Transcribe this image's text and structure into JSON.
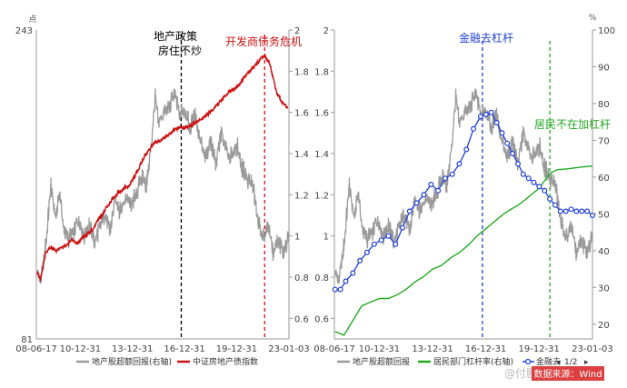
{
  "colors": {
    "grey_series": "#9a9a9a",
    "red_series": "#cc1111",
    "green_series": "#22aa22",
    "blue_series": "#1f3fd6",
    "black_marker": "#000000"
  },
  "chart_data": [
    {
      "type": "line",
      "title": "",
      "left_axis": {
        "unit": "点",
        "ticks": [
          "243",
          "81"
        ],
        "range": [
          81,
          243
        ]
      },
      "right_axis": {
        "ticks": [
          "2",
          "1.8",
          "1.6",
          "1.4",
          "1.2",
          "1",
          "0.8",
          "0.6"
        ],
        "range": [
          0.5,
          2.0
        ]
      },
      "x_ticks": [
        "08-06-17",
        "10-12-31",
        "13-12-31",
        "16-12-31",
        "19-12-31",
        "23-01-03"
      ],
      "series": [
        {
          "name": "地产股超额回报(右轴)",
          "axis": "right",
          "x": [
            2008.5,
            2008.7,
            2009.0,
            2009.3,
            2009.6,
            2009.8,
            2010.0,
            2010.3,
            2010.6,
            2010.9,
            2011.2,
            2011.5,
            2011.8,
            2012.1,
            2012.4,
            2012.7,
            2013.0,
            2013.3,
            2013.6,
            2013.9,
            2014.2,
            2014.5,
            2014.8,
            2015.1,
            2015.3,
            2015.5,
            2015.8,
            2016.1,
            2016.4,
            2016.7,
            2017.0,
            2017.3,
            2017.6,
            2017.9,
            2018.2,
            2018.5,
            2018.8,
            2019.1,
            2019.4,
            2019.7,
            2020.0,
            2020.3,
            2020.6,
            2020.9,
            2021.2,
            2021.5,
            2021.8,
            2022.1,
            2022.4,
            2022.7,
            2023.0
          ],
          "values": [
            0.82,
            0.78,
            0.95,
            1.25,
            1.08,
            1.22,
            1.05,
            0.98,
            1.02,
            1.08,
            1.0,
            1.05,
            0.97,
            1.04,
            1.1,
            1.02,
            1.18,
            1.12,
            1.2,
            1.15,
            1.2,
            1.28,
            1.25,
            1.45,
            1.68,
            1.55,
            1.6,
            1.62,
            1.7,
            1.58,
            1.62,
            1.52,
            1.6,
            1.45,
            1.38,
            1.46,
            1.35,
            1.5,
            1.42,
            1.38,
            1.44,
            1.33,
            1.28,
            1.25,
            1.08,
            0.98,
            1.05,
            0.92,
            0.98,
            0.9,
            1.02
          ]
        },
        {
          "name": "中证房地产债指数",
          "axis": "left",
          "x": [
            2008.5,
            2008.7,
            2009.0,
            2009.3,
            2009.6,
            2009.9,
            2010.2,
            2010.5,
            2010.8,
            2011.1,
            2011.4,
            2011.7,
            2012.0,
            2012.3,
            2012.6,
            2012.9,
            2013.2,
            2013.5,
            2013.8,
            2014.1,
            2014.4,
            2014.7,
            2015.0,
            2015.3,
            2015.6,
            2015.9,
            2016.2,
            2016.5,
            2016.8,
            2017.1,
            2017.4,
            2017.7,
            2018.0,
            2018.3,
            2018.6,
            2018.9,
            2019.2,
            2019.5,
            2019.8,
            2020.1,
            2020.4,
            2020.7,
            2021.0,
            2021.3,
            2021.5,
            2021.7,
            2021.9,
            2022.1,
            2022.3,
            2022.6,
            2022.9
          ],
          "values": [
            116,
            112,
            126,
            129,
            127,
            129,
            130,
            133,
            131,
            134,
            136,
            138,
            143,
            147,
            151,
            155,
            158,
            160,
            161,
            166,
            171,
            177,
            181,
            184,
            185,
            187,
            189,
            191,
            192,
            192,
            193,
            195,
            196,
            199,
            201,
            204,
            207,
            210,
            212,
            214,
            218,
            221,
            224,
            227,
            229,
            228,
            225,
            217,
            210,
            205,
            203
          ]
        }
      ],
      "vlines": [
        {
          "x": 2016.8,
          "style": "dashed",
          "color": "#000000"
        },
        {
          "x": 2021.6,
          "style": "dashed",
          "color": "#cc1111"
        }
      ],
      "annotations": [
        {
          "text": "地产政策",
          "color": "#000000"
        },
        {
          "text": "房住不炒",
          "color": "#000000"
        },
        {
          "text": "开发商债务危机",
          "color": "#cc1111"
        }
      ],
      "legend": [
        "地产股超额回报(右轴)",
        "中证房地产债指数"
      ]
    },
    {
      "type": "line",
      "title": "",
      "left_axis": {
        "ticks": [
          "2",
          "1.8",
          "1.6",
          "1.4",
          "1.2",
          "1",
          "0.8",
          "0.6"
        ],
        "range": [
          0.5,
          2.0
        ]
      },
      "right_axis": {
        "unit": "%",
        "ticks": [
          "100",
          "90",
          "80",
          "70",
          "60",
          "50",
          "40",
          "30",
          "20"
        ],
        "range": [
          16,
          100
        ]
      },
      "x_ticks": [
        "08-06-17",
        "10-12-31",
        "13-12-31",
        "16-12-31",
        "19-12-31",
        "23-01-03"
      ],
      "series": [
        {
          "name": "地产股超额回报",
          "axis": "left",
          "x": [
            2008.5,
            2008.7,
            2009.0,
            2009.3,
            2009.6,
            2009.8,
            2010.0,
            2010.3,
            2010.6,
            2010.9,
            2011.2,
            2011.5,
            2011.8,
            2012.1,
            2012.4,
            2012.7,
            2013.0,
            2013.3,
            2013.6,
            2013.9,
            2014.2,
            2014.5,
            2014.8,
            2015.1,
            2015.3,
            2015.5,
            2015.8,
            2016.1,
            2016.4,
            2016.7,
            2017.0,
            2017.3,
            2017.6,
            2017.9,
            2018.2,
            2018.5,
            2018.8,
            2019.1,
            2019.4,
            2019.7,
            2020.0,
            2020.3,
            2020.6,
            2020.9,
            2021.2,
            2021.5,
            2021.8,
            2022.1,
            2022.4,
            2022.7,
            2023.0
          ],
          "values": [
            0.82,
            0.78,
            0.95,
            1.25,
            1.08,
            1.22,
            1.05,
            0.98,
            1.02,
            1.08,
            1.0,
            1.05,
            0.97,
            1.04,
            1.1,
            1.02,
            1.18,
            1.12,
            1.2,
            1.15,
            1.2,
            1.28,
            1.25,
            1.45,
            1.68,
            1.55,
            1.6,
            1.62,
            1.7,
            1.58,
            1.62,
            1.52,
            1.6,
            1.45,
            1.38,
            1.46,
            1.35,
            1.5,
            1.42,
            1.38,
            1.44,
            1.33,
            1.28,
            1.25,
            1.08,
            0.98,
            1.05,
            0.92,
            0.98,
            0.9,
            1.02
          ]
        },
        {
          "name": "居民部门杠杆率(右轴)",
          "axis": "right",
          "x": [
            2008.5,
            2009.0,
            2009.5,
            2010.0,
            2010.5,
            2011.0,
            2011.5,
            2012.0,
            2012.5,
            2013.0,
            2013.5,
            2014.0,
            2014.5,
            2015.0,
            2015.5,
            2016.0,
            2016.5,
            2017.0,
            2017.5,
            2018.0,
            2018.5,
            2019.0,
            2019.5,
            2020.0,
            2020.3,
            2020.6,
            2021.0,
            2021.5,
            2022.0,
            2022.5,
            2023.0
          ],
          "values": [
            18,
            17,
            21,
            25,
            26,
            27,
            27,
            28,
            29.5,
            31.5,
            33,
            35,
            36,
            38,
            39.5,
            41.5,
            44,
            46,
            48,
            50,
            51.5,
            53,
            55,
            57,
            59,
            61,
            62,
            62.2,
            62.5,
            62.8,
            63
          ]
        },
        {
          "name": "金融去杠杆",
          "axis": "left",
          "markers": true,
          "x": [
            2008.5,
            2008.8,
            2009.1,
            2009.5,
            2009.9,
            2010.3,
            2010.7,
            2011.1,
            2011.5,
            2011.9,
            2012.3,
            2012.7,
            2013.1,
            2013.5,
            2013.9,
            2014.3,
            2014.7,
            2015.1,
            2015.5,
            2015.9,
            2016.3,
            2016.7,
            2017.0,
            2017.3,
            2017.6,
            2017.9,
            2018.2,
            2018.5,
            2018.8,
            2019.1,
            2019.4,
            2019.7,
            2020.0,
            2020.3,
            2020.6,
            2020.9,
            2021.2,
            2021.5,
            2021.8,
            2022.1,
            2022.4,
            2022.7,
            2023.0
          ],
          "values": [
            0.74,
            0.74,
            0.78,
            0.82,
            0.88,
            0.92,
            0.96,
            0.98,
            1.0,
            0.96,
            1.04,
            1.12,
            1.16,
            1.2,
            1.25,
            1.22,
            1.28,
            1.3,
            1.35,
            1.42,
            1.52,
            1.58,
            1.59,
            1.6,
            1.55,
            1.5,
            1.45,
            1.4,
            1.35,
            1.3,
            1.28,
            1.26,
            1.24,
            1.22,
            1.18,
            1.15,
            1.12,
            1.12,
            1.13,
            1.12,
            1.12,
            1.12,
            1.1
          ]
        }
      ],
      "vlines": [
        {
          "x": 2016.8,
          "style": "dashed",
          "color": "#1f3fd6"
        },
        {
          "x": 2020.6,
          "style": "dashed",
          "color": "#22aa22"
        }
      ],
      "annotations": [
        {
          "text": "金融去杠杆",
          "color": "#1f3fd6"
        },
        {
          "text": "居民不在加杠杆",
          "color": "#22aa22"
        }
      ],
      "legend": [
        "地产股超额回报",
        "居民部门杠杆率(右轴)",
        "金融去"
      ],
      "legend_pager": "1/2"
    }
  ],
  "watermark": "@付鹏的财经世界",
  "source_label": "数据来源：Wind"
}
